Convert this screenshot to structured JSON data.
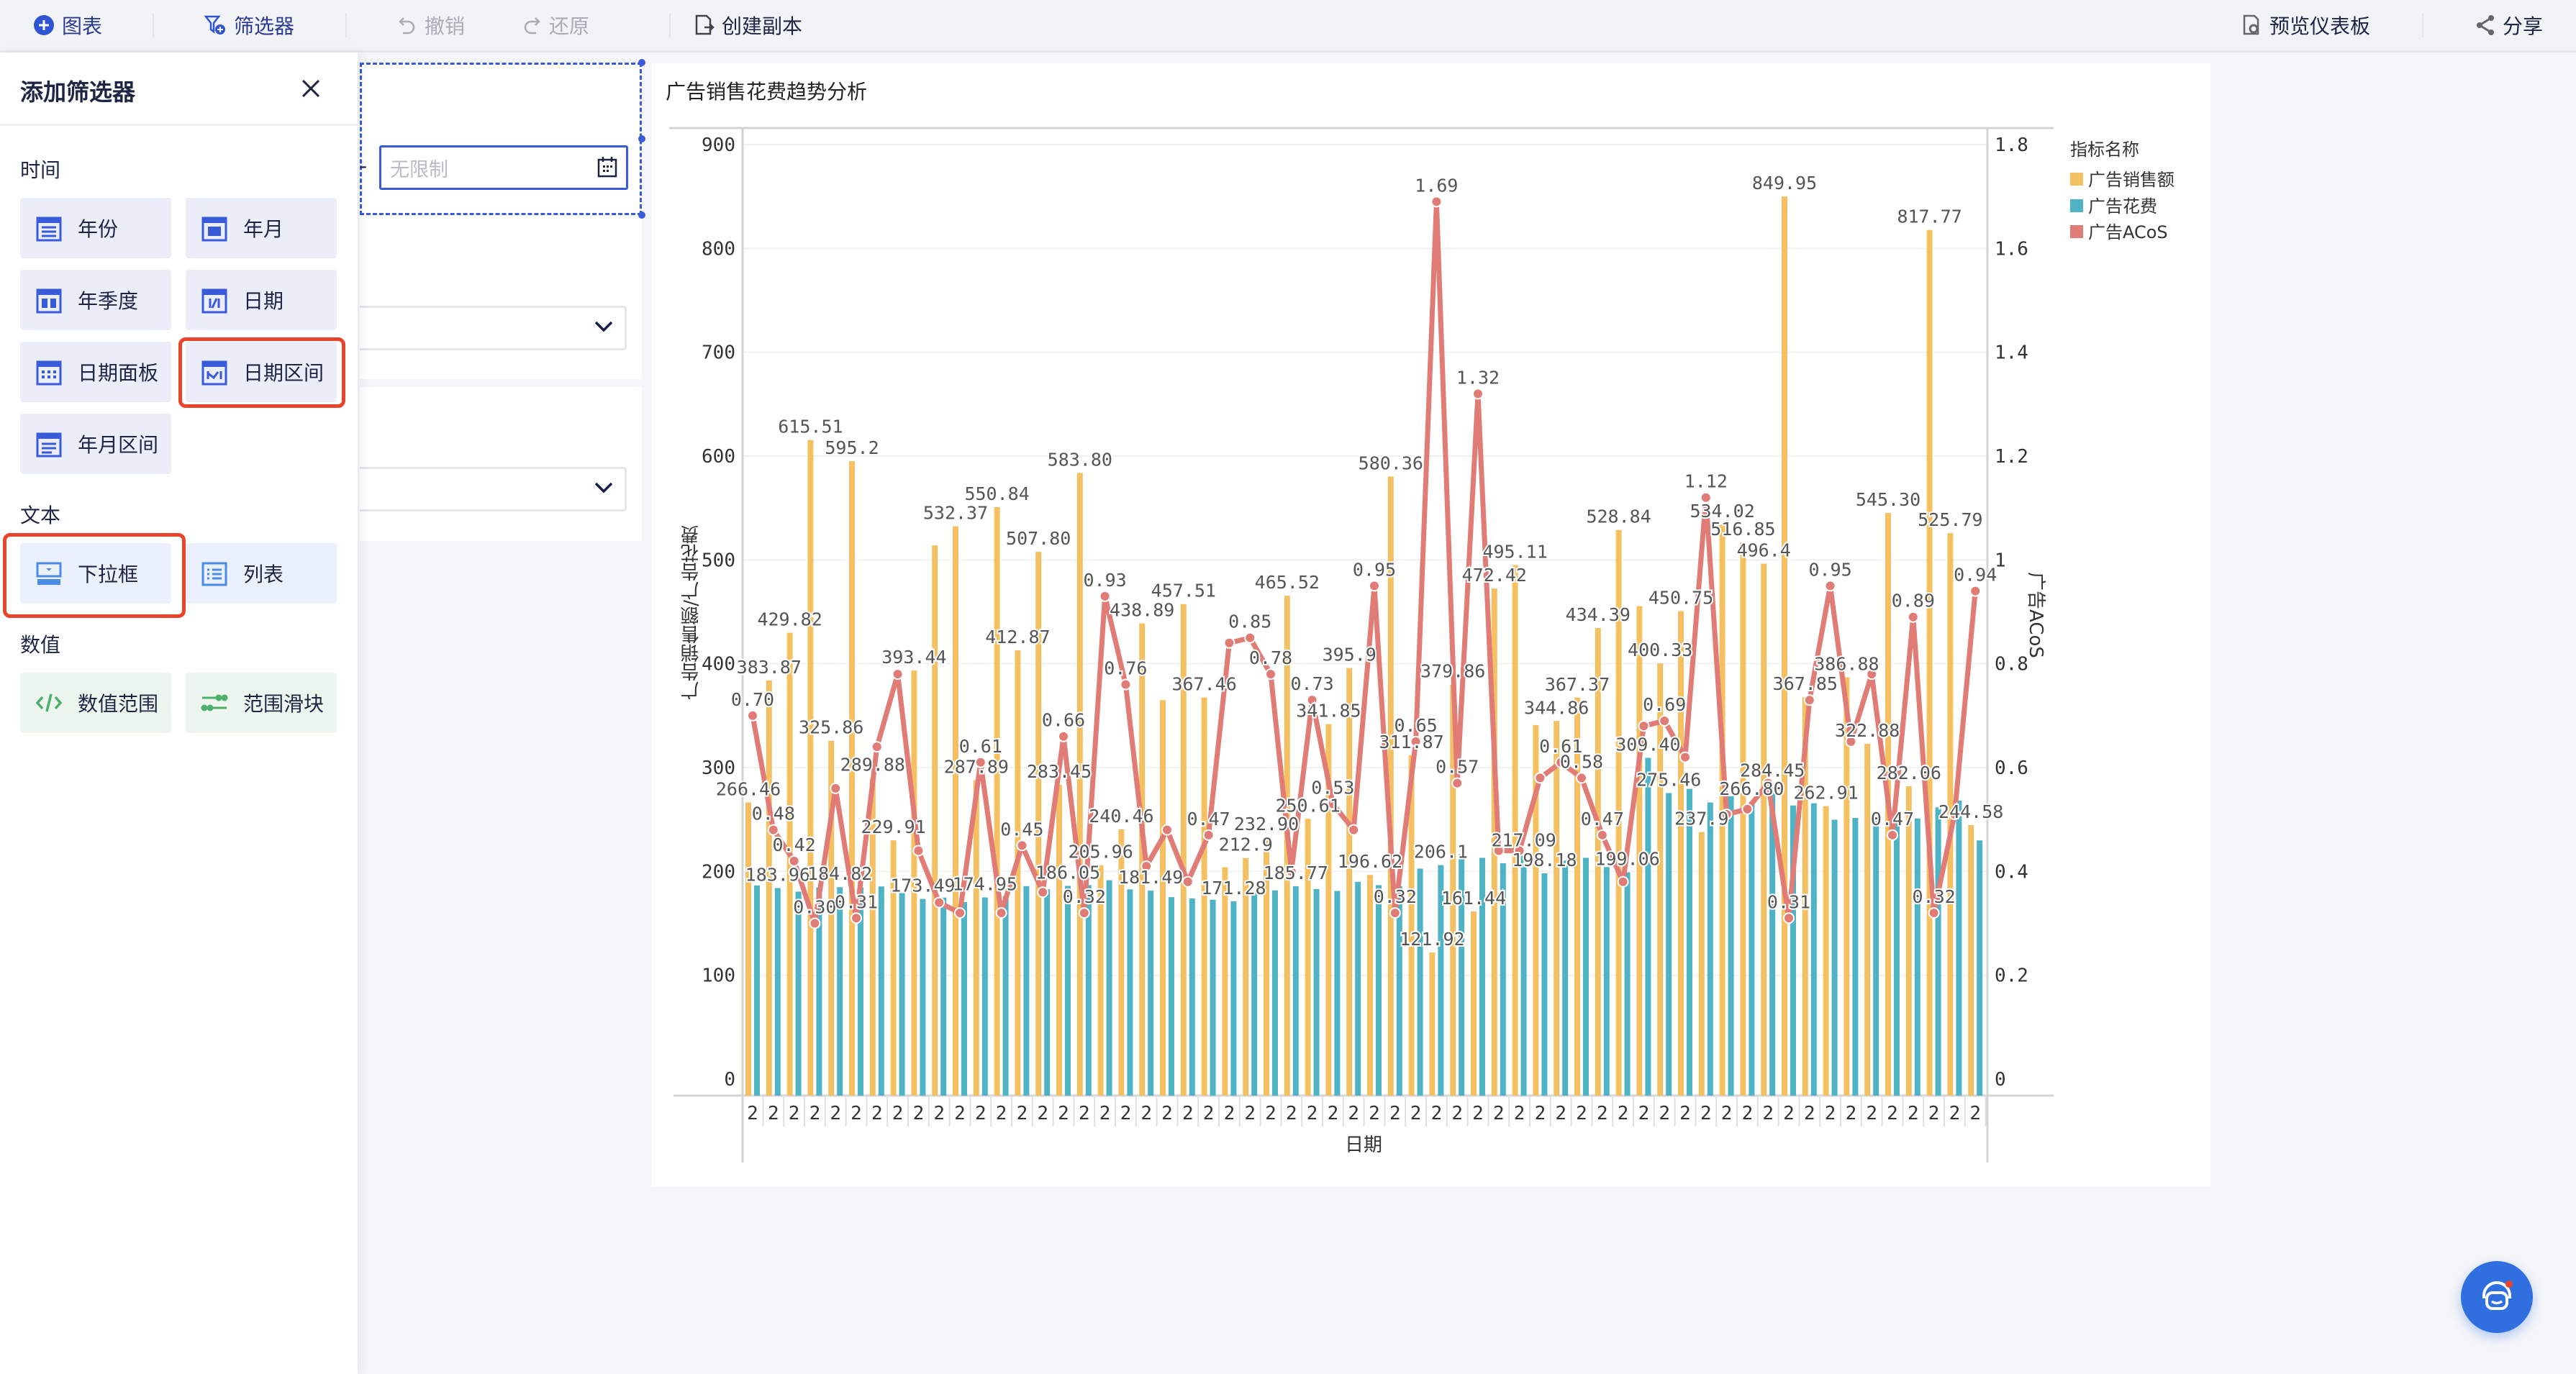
{
  "toolbar": {
    "chart": "图表",
    "filter": "筛选器",
    "undo": "撤销",
    "redo": "还原",
    "duplicate": "创建副本",
    "preview": "预览仪表板",
    "share": "分享"
  },
  "panel": {
    "title": "添加筛选器",
    "sections": [
      {
        "title": "时间",
        "items": [
          "年份",
          "年月",
          "年季度",
          "日期",
          "日期面板",
          "日期区间",
          "年月区间"
        ]
      },
      {
        "title": "文本",
        "items": [
          "下拉框",
          "列表"
        ]
      },
      {
        "title": "数值",
        "items": [
          "数值范围",
          "范围滑块"
        ]
      }
    ],
    "highlighted": [
      "日期区间",
      "下拉框"
    ]
  },
  "canvas": {
    "range_separator": "-",
    "date_placeholder": "无限制"
  },
  "colors": {
    "accent": "#3a5bd9",
    "highlight": "#e8432b",
    "sales": "#f5c062",
    "spend": "#4fb3c6",
    "acos": "#e07b76"
  },
  "chart_data": {
    "type": "bar+line",
    "title": "广告销售花费趋势分析",
    "xlabel": "日期",
    "ylabel": "广告销售额/广告花费",
    "y2label": "广告ACoS",
    "legend_title": "指标名称",
    "legend_position": "top-right",
    "ylim": [
      0,
      900
    ],
    "y2lim": [
      0,
      1.8
    ],
    "yticks": [
      "0",
      "100",
      "200",
      "300",
      "400",
      "500",
      "600",
      "700",
      "800",
      "900"
    ],
    "y2ticks": [
      "0",
      "0.2",
      "0.4",
      "0.6",
      "0.8",
      "1",
      "1.2",
      "1.4",
      "1.6",
      "1.8"
    ],
    "categories": [
      "2",
      "2",
      "2",
      "2",
      "2",
      "2",
      "2",
      "2",
      "2",
      "2",
      "2",
      "2",
      "2",
      "2",
      "2",
      "2",
      "2",
      "2",
      "2",
      "2",
      "2",
      "2",
      "2",
      "2",
      "2",
      "2",
      "2",
      "2",
      "2",
      "2",
      "2",
      "2",
      "2",
      "2",
      "2",
      "2",
      "2",
      "2",
      "2",
      "2",
      "2",
      "2",
      "2",
      "2",
      "2",
      "2",
      "2",
      "2",
      "2",
      "2",
      "2",
      "2",
      "2",
      "2",
      "2",
      "2",
      "2",
      "2",
      "2",
      "2"
    ],
    "series": [
      {
        "name": "广告销售额",
        "type": "bar",
        "axis": "left",
        "values": [
          266.46,
          383.87,
          429.82,
          615.51,
          325.86,
          595.2,
          289.88,
          229.91,
          393.44,
          514,
          532.37,
          287.89,
          550.84,
          412.87,
          507.8,
          283.45,
          583.8,
          205.96,
          240.46,
          438.89,
          365,
          457.51,
          367.46,
          204,
          212.9,
          232.9,
          465.52,
          250.61,
          341.85,
          395.9,
          196.62,
          580.36,
          311.87,
          121.92,
          379.86,
          161.44,
          472.42,
          495.11,
          341,
          344.86,
          367.37,
          434.39,
          528.84,
          455.5,
          400.33,
          450.75,
          237.9,
          534.02,
          516.85,
          496.4,
          849.95,
          367.85,
          262.91,
          386.88,
          322.88,
          545.3,
          282.06,
          817.77,
          525.79,
          244.58
        ],
        "labels": [
          "266.46",
          "383.87",
          "429.82",
          "615.51",
          "325.86",
          "595.2",
          "289.88",
          "229.91",
          "393.44",
          "",
          "532.37",
          "287.89",
          "550.84",
          "412.87",
          "507.80",
          "283.45",
          "583.80",
          "205.96",
          "240.46",
          "438.89",
          "",
          "457.51",
          "367.46",
          "",
          "212.9",
          "232.90",
          "465.52",
          "250.61",
          "341.85",
          "395.9",
          "196.62",
          "580.36",
          "311.87",
          "121.92",
          "379.86",
          "161.44",
          "472.42",
          "495.11",
          "",
          "344.86",
          "367.37",
          "434.39",
          "528.84",
          "",
          "400.33",
          "450.75",
          "237.9",
          "534.02",
          "516.85",
          "496.4",
          "849.95",
          "367.85",
          "262.91",
          "386.88",
          "322.88",
          "545.30",
          "282.06",
          "817.77",
          "525.79",
          "244.58"
        ]
      },
      {
        "name": "广告花费",
        "type": "bar",
        "axis": "left",
        "values": [
          186.5,
          183.96,
          180.5,
          184.6,
          184.82,
          184.5,
          185.5,
          179.3,
          173.49,
          174.8,
          170.4,
          174.95,
          176.3,
          185.8,
          182.8,
          186.05,
          186.8,
          191.5,
          182.7,
          181.49,
          175.2,
          173.9,
          172.7,
          171.28,
          181,
          181.7,
          185.77,
          183,
          181.2,
          190,
          186.8,
          185.7,
          202.7,
          206.1,
          216.5,
          213.1,
          207.9,
          217.09,
          198.18,
          210.4,
          213.1,
          204.2,
          199.06,
          309.4,
          275.46,
          279.5,
          266.4,
          272.4,
          266.8,
          284.45,
          263.5,
          265.6,
          249.8,
          251.5,
          251.8,
          256.3,
          251,
          261.7,
          268.2,
          229.9
        ],
        "labels": [
          "",
          "183.96",
          "",
          "",
          "184.82",
          "",
          "",
          "",
          "173.49",
          "",
          "",
          "174.95",
          "",
          "",
          "",
          "186.05",
          "",
          "",
          "",
          "181.49",
          "",
          "",
          "",
          "171.28",
          "",
          "",
          "185.77",
          "",
          "",
          "",
          "",
          "",
          "",
          "206.1",
          "",
          "",
          "",
          "217.09",
          "198.18",
          "",
          "",
          "",
          "199.06",
          "309.40",
          "275.46",
          "",
          "",
          "",
          "266.80",
          "284.45",
          "",
          "",
          "",
          "",
          "",
          "",
          "",
          "",
          "",
          ""
        ]
      },
      {
        "name": "广告ACoS",
        "type": "line",
        "axis": "right",
        "values": [
          0.7,
          0.48,
          0.42,
          0.3,
          0.56,
          0.31,
          0.64,
          0.78,
          0.44,
          0.34,
          0.32,
          0.61,
          0.32,
          0.45,
          0.36,
          0.66,
          0.32,
          0.93,
          0.76,
          0.41,
          0.48,
          0.38,
          0.47,
          0.84,
          0.85,
          0.78,
          0.4,
          0.73,
          0.53,
          0.48,
          0.95,
          0.32,
          0.65,
          1.69,
          0.57,
          1.32,
          0.44,
          0.44,
          0.58,
          0.61,
          0.58,
          0.47,
          0.38,
          0.68,
          0.69,
          0.62,
          1.12,
          0.51,
          0.52,
          0.57,
          0.31,
          0.73,
          0.95,
          0.65,
          0.78,
          0.47,
          0.89,
          0.32,
          0.51,
          0.94
        ],
        "labels": [
          "0.70",
          "0.48",
          "0.42",
          "0.30",
          "",
          "0.31",
          "",
          "",
          "",
          "",
          "",
          "0.61",
          "",
          "0.45",
          "",
          "0.66",
          "0.32",
          "0.93",
          "0.76",
          "",
          "",
          "",
          "0.47",
          "",
          "0.85",
          "0.78",
          "",
          "0.73",
          "0.53",
          "",
          "0.95",
          "0.32",
          "0.65",
          "1.69",
          "0.57",
          "1.32",
          "",
          "",
          "",
          "0.61",
          "0.58",
          "0.47",
          "",
          "",
          "0.69",
          "",
          "1.12",
          "",
          "",
          "",
          "0.31",
          "",
          "0.95",
          "",
          "",
          "0.47",
          "0.89",
          "0.32",
          "",
          "0.94"
        ]
      }
    ]
  }
}
